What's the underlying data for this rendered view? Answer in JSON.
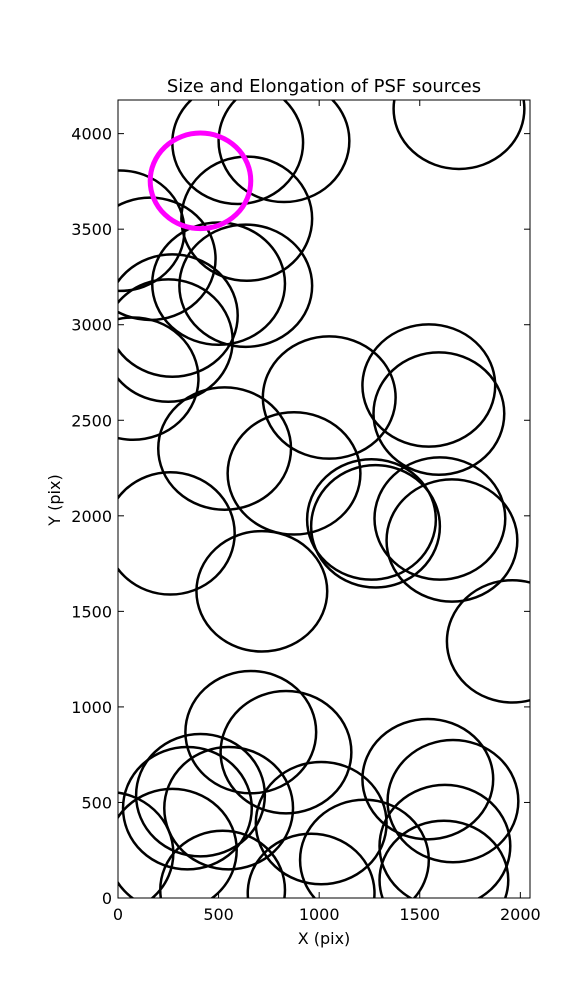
{
  "chart_data": {
    "type": "ellipse-scatter",
    "title": "Size and Elongation of PSF sources",
    "xlabel": "X (pix)",
    "ylabel": "Y (pix)",
    "xlim": [
      0,
      2048
    ],
    "ylim": [
      0,
      4176
    ],
    "xticks": [
      0,
      500,
      1000,
      1500,
      2000
    ],
    "yticks": [
      0,
      500,
      1000,
      1500,
      2000,
      2500,
      3000,
      3500,
      4000
    ],
    "series": [
      {
        "color": "#000000",
        "x": [
          1695,
          825,
          595,
          640,
          10,
          160,
          500,
          635,
          270,
          250,
          75,
          1050,
          1545,
          1595,
          530,
          875,
          1260,
          1280,
          1600,
          1660,
          260,
          715,
          1960,
          660,
          835,
          1540,
          1665,
          410,
          345,
          550,
          1010,
          270,
          1625,
          -50,
          520,
          960,
          1225,
          1620
        ],
        "y": [
          4130,
          3962,
          3952,
          3555,
          3492,
          3345,
          3215,
          3204,
          3048,
          2917,
          2718,
          2619,
          2682,
          2535,
          2352,
          2222,
          1981,
          1945,
          1986,
          1871,
          1908,
          1605,
          1343,
          868,
          763,
          622,
          507,
          538,
          470,
          470,
          392,
          251,
          272,
          235,
          42,
          26,
          199,
          94
        ],
        "width": [
          650,
          650,
          650,
          650,
          640,
          650,
          660,
          660,
          650,
          640,
          650,
          660,
          660,
          650,
          660,
          660,
          640,
          640,
          650,
          650,
          640,
          650,
          650,
          650,
          650,
          650,
          650,
          640,
          640,
          640,
          650,
          640,
          650,
          650,
          620,
          630,
          640,
          640
        ],
        "height": [
          630,
          640,
          640,
          650,
          630,
          640,
          640,
          640,
          640,
          640,
          640,
          640,
          640,
          640,
          640,
          640,
          630,
          640,
          640,
          640,
          640,
          630,
          640,
          640,
          640,
          630,
          640,
          640,
          640,
          640,
          640,
          640,
          640,
          640,
          620,
          620,
          630,
          620
        ]
      },
      {
        "color": "#ff00ff",
        "x": [
          410
        ],
        "y": [
          3753
        ],
        "width": [
          500
        ],
        "height": [
          500
        ]
      }
    ]
  }
}
